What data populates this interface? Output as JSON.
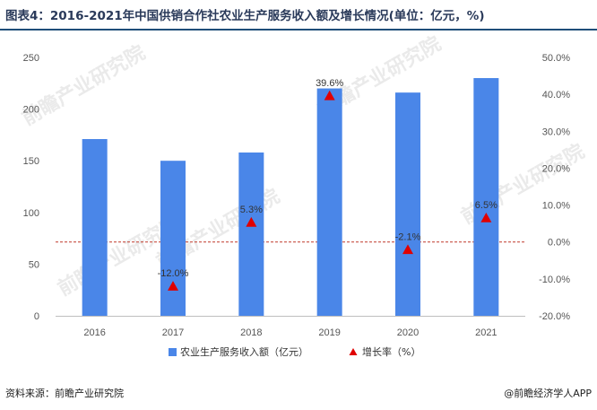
{
  "header": {
    "title": "图表4：2016-2021年中国供销合作社农业生产服务收入额及增长情况(单位：亿元，%)"
  },
  "footer": {
    "source": "资料来源：前瞻产业研究院",
    "brand": "@前瞻经济学人APP"
  },
  "watermark": {
    "text": "前瞻产业研究院"
  },
  "colors": {
    "bar": "#4a86e8",
    "marker": "#e00000",
    "zero_line": "#c0392b",
    "title_bar": "#1f4e79"
  },
  "chart_data": {
    "type": "bar",
    "title": "图表4：2016-2021年中国供销合作社农业生产服务收入额及增长情况(单位：亿元，%)",
    "categories": [
      "2016",
      "2017",
      "2018",
      "2019",
      "2020",
      "2021"
    ],
    "series": [
      {
        "name": "农业生产服务收入额（亿元）",
        "type": "bar",
        "axis": "left",
        "values": [
          171,
          150,
          158,
          220,
          216,
          230
        ]
      },
      {
        "name": "增长率（%）",
        "type": "marker",
        "axis": "right",
        "values": [
          null,
          -12.0,
          5.3,
          39.6,
          -2.1,
          6.5
        ],
        "labels": [
          "",
          "-12.0%",
          "5.3%",
          "39.6%",
          "-2.1%",
          "6.5%"
        ]
      }
    ],
    "y_left": {
      "min": 0,
      "max": 250,
      "ticks": [
        "0",
        "50",
        "100",
        "150",
        "200",
        "250"
      ]
    },
    "y_right": {
      "min": -20,
      "max": 50,
      "ticks": [
        "-20.0%",
        "-10.0%",
        "0.0%",
        "10.0%",
        "20.0%",
        "30.0%",
        "40.0%",
        "50.0%"
      ]
    },
    "legend": [
      "农业生产服务收入额（亿元）",
      "增长率（%）"
    ],
    "legend_position": "bottom",
    "grid": false
  }
}
